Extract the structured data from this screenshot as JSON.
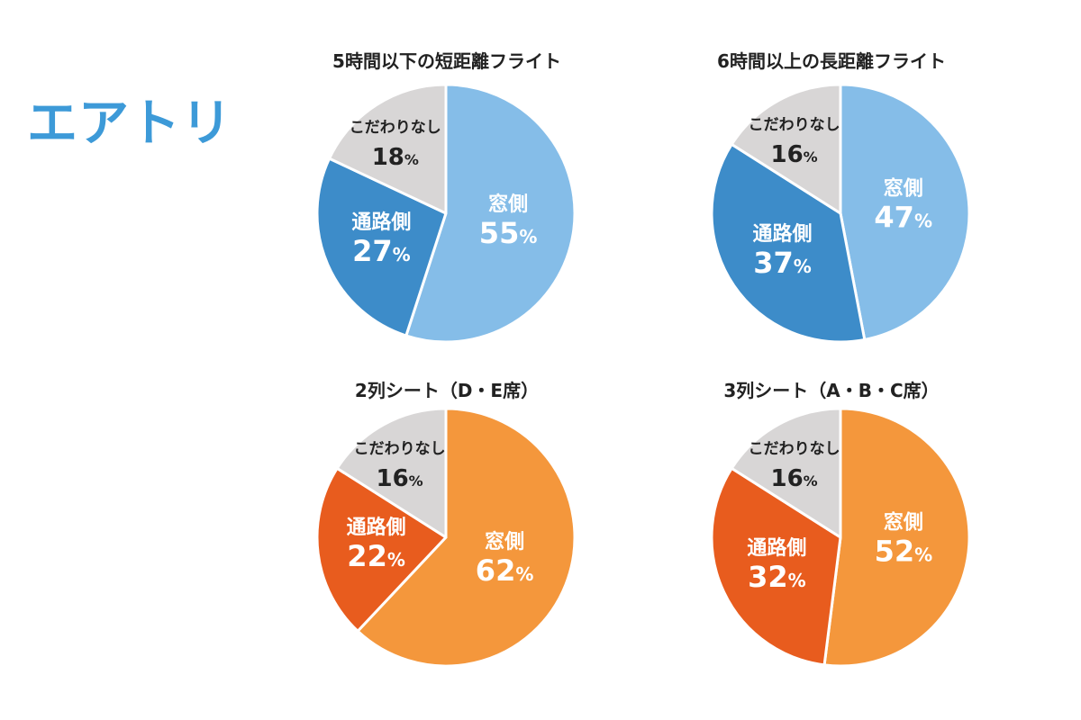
{
  "logo": {
    "text": "エアトリ",
    "color": "#3d9ad8"
  },
  "chart_data": [
    {
      "type": "pie",
      "title": "5時間以下の短距離フライト",
      "categories": [
        "窓側",
        "通路側",
        "こだわりなし"
      ],
      "values": [
        55,
        27,
        18
      ],
      "value_labels": [
        "55",
        "27",
        "18"
      ],
      "unit": "%",
      "colors": [
        "#85bde8",
        "#3d8cc9",
        "#d8d6d6"
      ]
    },
    {
      "type": "pie",
      "title": "6時間以上の長距離フライト",
      "categories": [
        "窓側",
        "通路側",
        "こだわりなし"
      ],
      "values": [
        47,
        37,
        16
      ],
      "value_labels": [
        "47",
        "37",
        "16"
      ],
      "unit": "%",
      "colors": [
        "#85bde8",
        "#3d8cc9",
        "#d8d6d6"
      ]
    },
    {
      "type": "pie",
      "title": "2列シート（D・E席）",
      "categories": [
        "窓側",
        "通路側",
        "こだわりなし"
      ],
      "values": [
        62,
        22,
        16
      ],
      "value_labels": [
        "62",
        "22",
        "16"
      ],
      "unit": "%",
      "colors": [
        "#f4973c",
        "#e85c1e",
        "#d8d6d6"
      ]
    },
    {
      "type": "pie",
      "title": "3列シート（A・B・C席）",
      "categories": [
        "窓側",
        "通路側",
        "こだわりなし"
      ],
      "values": [
        52,
        32,
        16
      ],
      "value_labels": [
        "52",
        "32",
        "16"
      ],
      "unit": "%",
      "colors": [
        "#f4973c",
        "#e85c1e",
        "#d8d6d6"
      ]
    }
  ]
}
